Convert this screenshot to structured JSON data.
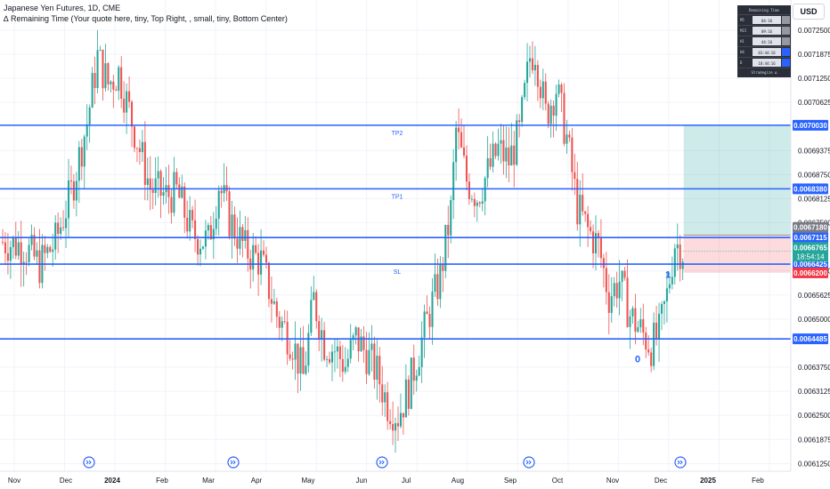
{
  "header": {
    "title": "Japanese Yen Futures, 1D, CME",
    "indicator": "∆ Remaining Time (Your quote here, tiny, Top Right, , small, tiny, Bottom Center)"
  },
  "currency_button": "USD",
  "remaining_table": {
    "title": "Remaining Time",
    "rows": [
      {
        "tf": "M5",
        "value": "04:16",
        "color": "#9598a1"
      },
      {
        "tf": "M15",
        "value": "09:16",
        "color": "#9598a1"
      },
      {
        "tf": "H1",
        "value": "44:16",
        "color": "#9598a1"
      },
      {
        "tf": "H4",
        "value": "03:44:16",
        "color": "#2962ff"
      },
      {
        "tf": "D",
        "value": "18:44:16",
        "color": "#2962ff"
      }
    ],
    "footer": "Stradegize ∆"
  },
  "chart_data": {
    "type": "candlestick",
    "symbol": "Japanese Yen Futures",
    "timeframe": "1D",
    "exchange": "CME",
    "y_axis_ticks": [
      "0.0072500",
      "0.0071875",
      "0.0071250",
      "0.0070625",
      "0.0069375",
      "0.0068750",
      "0.0068125",
      "0.0067500",
      "0.0066250",
      "0.0065625",
      "0.0065000",
      "0.0063750",
      "0.0063125",
      "0.0062500",
      "0.0061875",
      "0.0061250"
    ],
    "x_axis_labels": [
      "Nov",
      "Dec",
      "2024",
      "Feb",
      "Mar",
      "Apr",
      "May",
      "Jun",
      "Jul",
      "Aug",
      "Sep",
      "Oct",
      "Nov",
      "Dec",
      "2025",
      "Feb"
    ],
    "ylim": [
      0.006105,
      0.007305
    ],
    "horizontal_lines": [
      {
        "label": "TP2",
        "price": 0.007003,
        "price_label": "0.0070030"
      },
      {
        "label": "TP1",
        "price": 0.006838,
        "price_label": "0.0068380"
      },
      {
        "label": "",
        "price": 0.0067115,
        "price_label": "0.0067115"
      },
      {
        "label": "SL",
        "price": 0.0066425,
        "price_label": "0.0066425"
      },
      {
        "label": "",
        "price": 0.0064485,
        "price_label": "0.0064485"
      }
    ],
    "position": {
      "type": "long",
      "entry": 0.006718,
      "target": 0.007003,
      "stop": 0.00662,
      "entry_label": "0.0067180",
      "target_label": "0.0070030",
      "stop_label": "0.0066200"
    },
    "last_price": {
      "price": 0.0066765,
      "label": "0.0066765",
      "countdown": "18:54:14"
    },
    "wave_labels": [
      {
        "text": "0",
        "date": "Nov 2024",
        "price": 0.006415
      },
      {
        "text": "1",
        "date": "Dec 2024",
        "price": 0.006635
      }
    ],
    "anchor_points": [
      {
        "t": 0,
        "p": 0.0067
      },
      {
        "t": 8,
        "p": 0.00669
      },
      {
        "t": 14,
        "p": 0.00664
      },
      {
        "t": 20,
        "p": 0.0067
      },
      {
        "t": 26,
        "p": 0.00683
      },
      {
        "t": 32,
        "p": 0.00701
      },
      {
        "t": 36,
        "p": 0.00718
      },
      {
        "t": 40,
        "p": 0.00711
      },
      {
        "t": 44,
        "p": 0.00714
      },
      {
        "t": 50,
        "p": 0.00699
      },
      {
        "t": 56,
        "p": 0.00684
      },
      {
        "t": 62,
        "p": 0.00682
      },
      {
        "t": 66,
        "p": 0.00683
      },
      {
        "t": 72,
        "p": 0.00672
      },
      {
        "t": 78,
        "p": 0.0067
      },
      {
        "t": 82,
        "p": 0.00685
      },
      {
        "t": 86,
        "p": 0.00676
      },
      {
        "t": 92,
        "p": 0.00668
      },
      {
        "t": 98,
        "p": 0.00665
      },
      {
        "t": 104,
        "p": 0.00651
      },
      {
        "t": 110,
        "p": 0.00644
      },
      {
        "t": 114,
        "p": 0.00635
      },
      {
        "t": 118,
        "p": 0.00655
      },
      {
        "t": 122,
        "p": 0.00644
      },
      {
        "t": 126,
        "p": 0.00642
      },
      {
        "t": 130,
        "p": 0.00638
      },
      {
        "t": 134,
        "p": 0.00645
      },
      {
        "t": 138,
        "p": 0.00641
      },
      {
        "t": 142,
        "p": 0.00636
      },
      {
        "t": 146,
        "p": 0.00628
      },
      {
        "t": 150,
        "p": 0.00625
      },
      {
        "t": 154,
        "p": 0.00632
      },
      {
        "t": 158,
        "p": 0.00642
      },
      {
        "t": 162,
        "p": 0.00652
      },
      {
        "t": 166,
        "p": 0.00661
      },
      {
        "t": 170,
        "p": 0.00678
      },
      {
        "t": 172,
        "p": 0.00699
      },
      {
        "t": 176,
        "p": 0.00686
      },
      {
        "t": 180,
        "p": 0.00682
      },
      {
        "t": 184,
        "p": 0.00688
      },
      {
        "t": 188,
        "p": 0.00694
      },
      {
        "t": 192,
        "p": 0.00691
      },
      {
        "t": 196,
        "p": 0.00698
      },
      {
        "t": 200,
        "p": 0.00718
      },
      {
        "t": 202,
        "p": 0.0072
      },
      {
        "t": 206,
        "p": 0.00703
      },
      {
        "t": 210,
        "p": 0.0071
      },
      {
        "t": 214,
        "p": 0.00697
      },
      {
        "t": 218,
        "p": 0.00679
      },
      {
        "t": 222,
        "p": 0.00673
      },
      {
        "t": 226,
        "p": 0.00669
      },
      {
        "t": 230,
        "p": 0.00656
      },
      {
        "t": 234,
        "p": 0.0066
      },
      {
        "t": 238,
        "p": 0.00651
      },
      {
        "t": 242,
        "p": 0.00647
      },
      {
        "t": 246,
        "p": 0.00643
      },
      {
        "t": 249,
        "p": 0.00646
      },
      {
        "t": 252,
        "p": 0.00656
      },
      {
        "t": 255,
        "p": 0.0067
      },
      {
        "t": 258,
        "p": 0.006676
      }
    ],
    "time_span": [
      0,
      300
    ],
    "bar_count": 259,
    "future_end": 300
  },
  "colors": {
    "bull": "#26a69a",
    "bear": "#ef5350",
    "line_blue": "#2962ff",
    "target_zone": "rgba(38,166,154,0.22)",
    "stop_zone": "rgba(242,54,69,0.18)",
    "entry_label_bg": "#787b86",
    "stop_label_bg": "#f23645",
    "last_price_bg": "#26a69a"
  }
}
